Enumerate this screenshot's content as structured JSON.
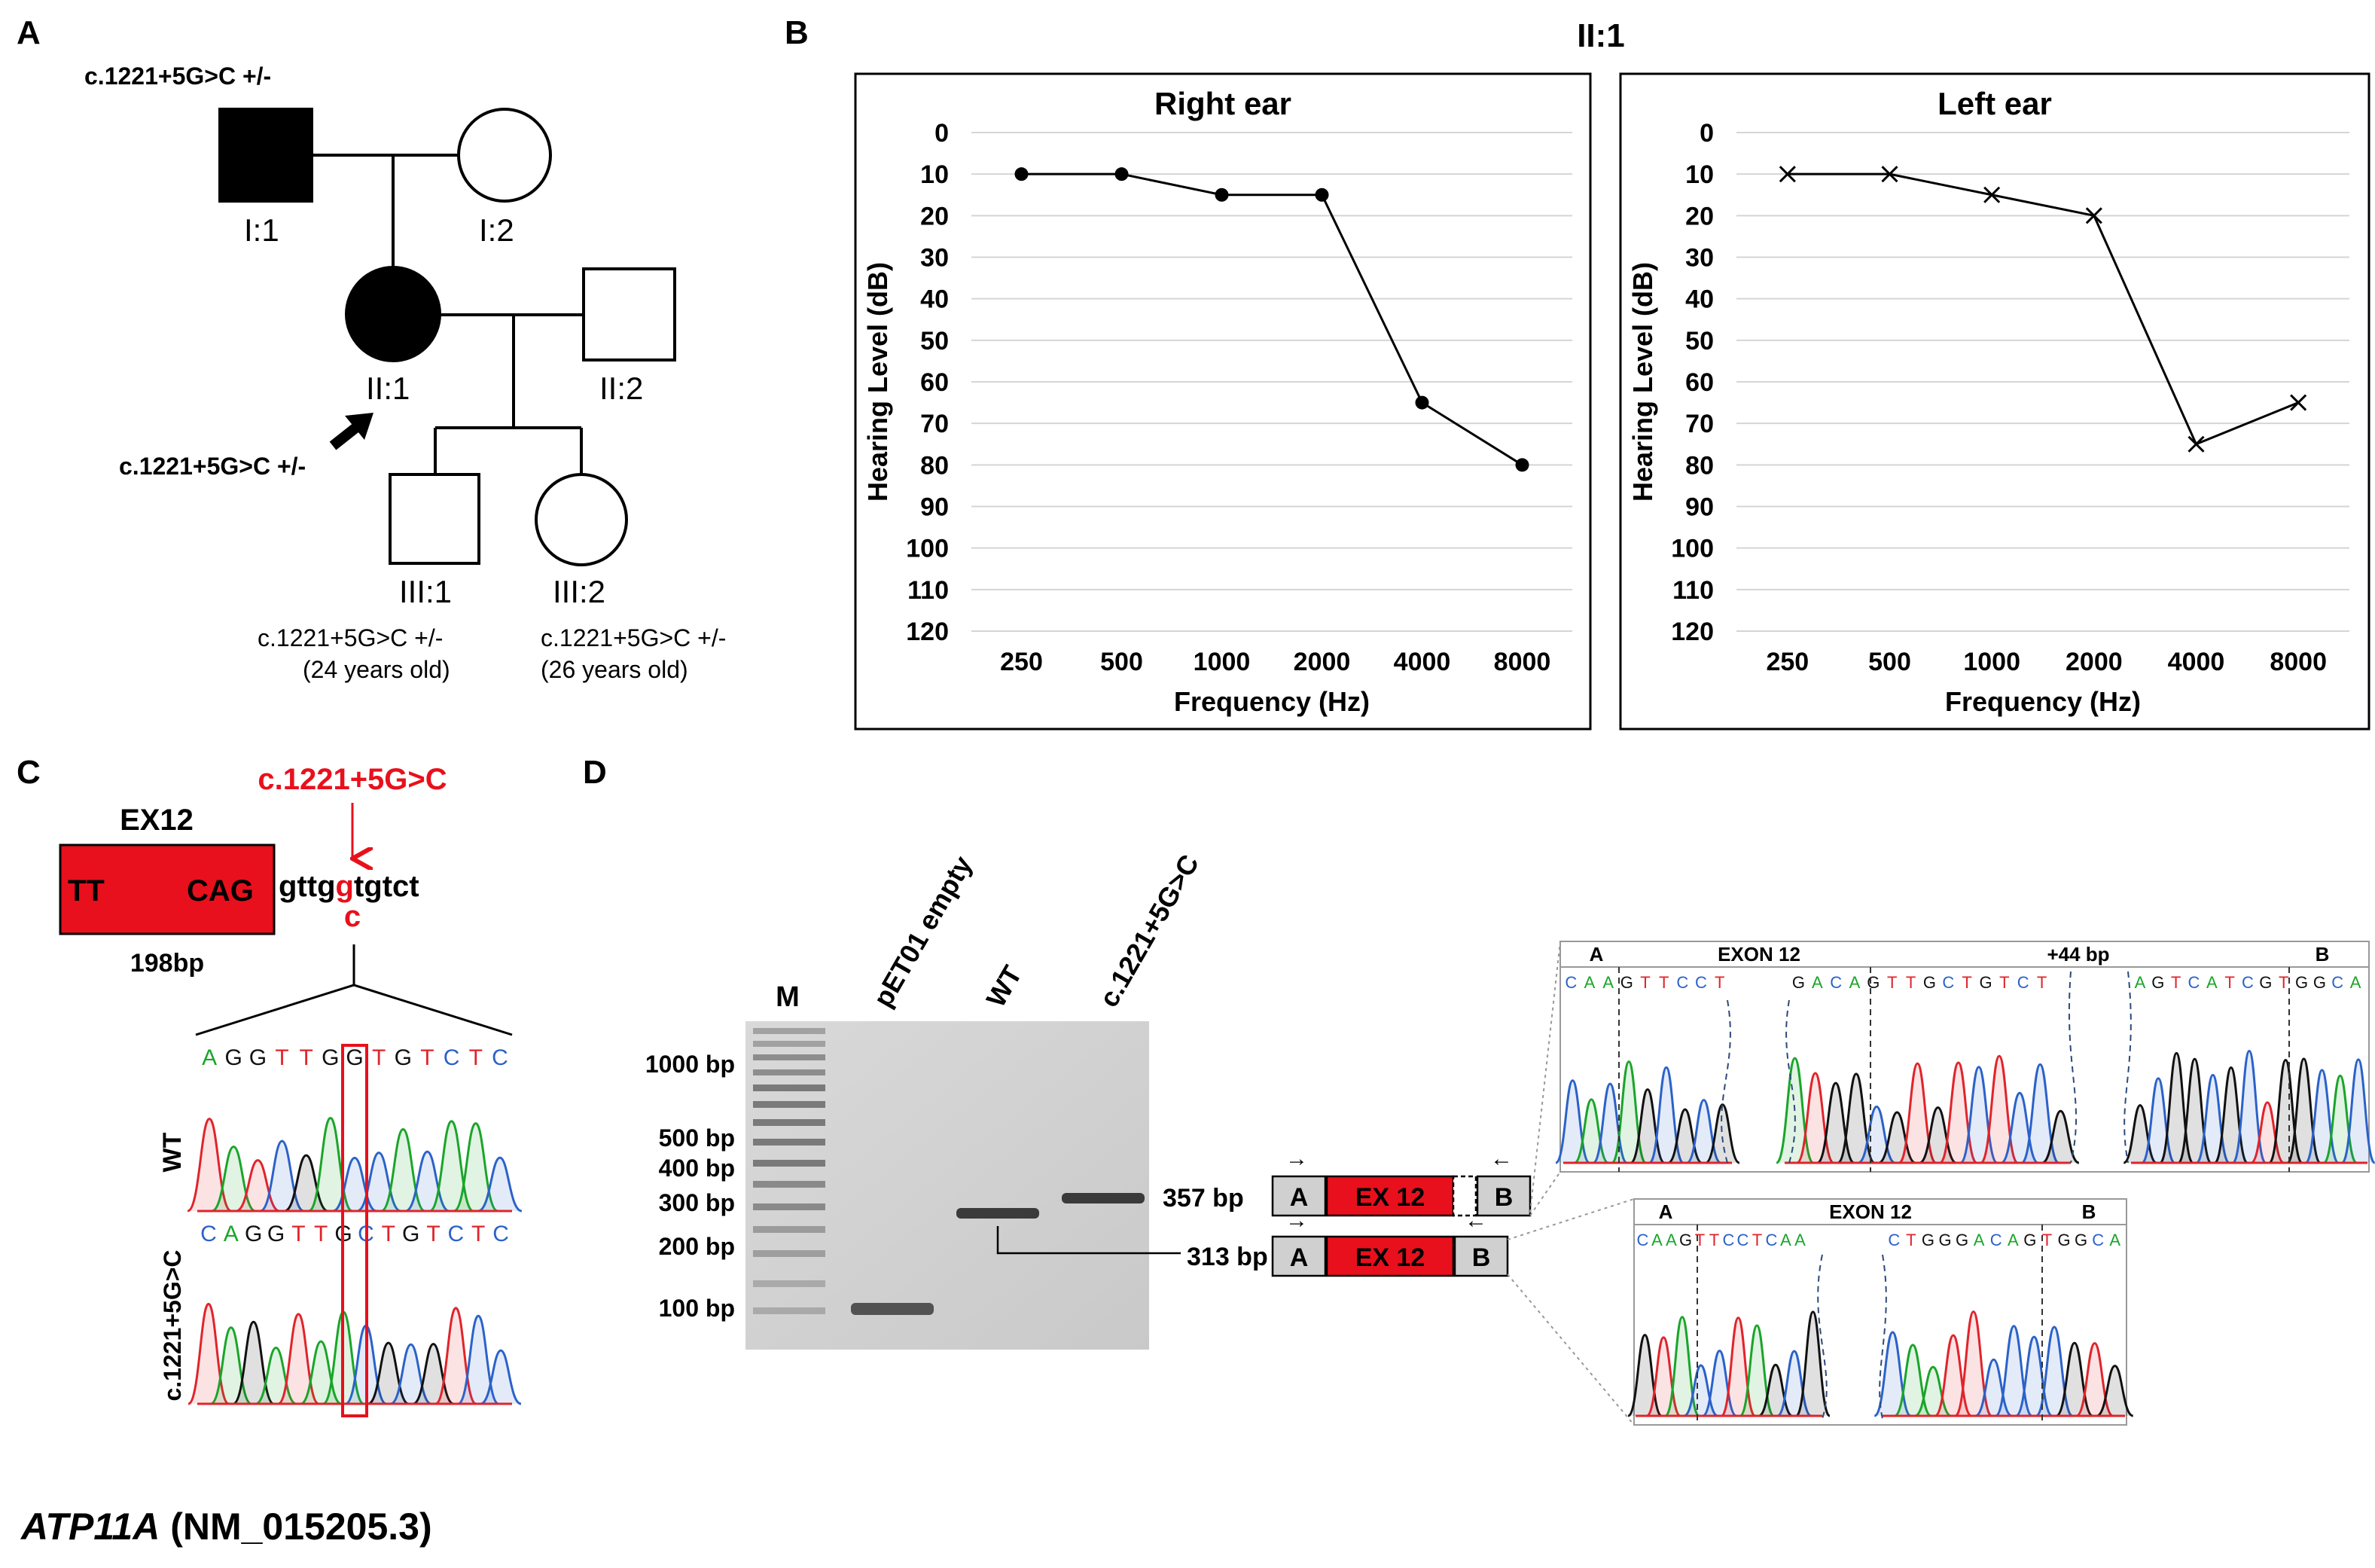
{
  "panel_labels": {
    "a": "A",
    "b": "B",
    "c": "C",
    "d": "D"
  },
  "pedigree": {
    "variant_top": "c.1221+5G>C +/-",
    "variant_proband": "c.1221+5G>C +/-",
    "variant_iii1": "c.1221+5G>C +/-",
    "variant_iii2": "c.1221+5G>C +/-",
    "age_iii1": "(24 years old)",
    "age_iii2": "(26 years old)",
    "ids": {
      "i1": "I:1",
      "i2": "I:2",
      "ii1": "II:1",
      "ii2": "II:2",
      "iii1": "III:1",
      "iii2": "III:2"
    }
  },
  "audiogram_title": "II:1",
  "chart_data": [
    {
      "type": "line",
      "title": "Right ear",
      "xlabel": "Frequency (Hz)",
      "ylabel": "Hearing Level (dB)",
      "categories": [
        "250",
        "500",
        "1000",
        "2000",
        "4000",
        "8000"
      ],
      "values": [
        10,
        10,
        15,
        15,
        65,
        80
      ],
      "marker": "circle",
      "ylim": [
        0,
        120
      ],
      "yticks": [
        "0",
        "10",
        "20",
        "30",
        "40",
        "50",
        "60",
        "70",
        "80",
        "90",
        "100",
        "110",
        "120"
      ],
      "y_inverted": true,
      "grid": true
    },
    {
      "type": "line",
      "title": "Left ear",
      "xlabel": "Frequency (Hz)",
      "ylabel": "Hearing Level (dB)",
      "categories": [
        "250",
        "500",
        "1000",
        "2000",
        "4000",
        "8000"
      ],
      "values": [
        10,
        10,
        15,
        20,
        75,
        65
      ],
      "marker": "x",
      "ylim": [
        0,
        120
      ],
      "yticks": [
        "0",
        "10",
        "20",
        "30",
        "40",
        "50",
        "60",
        "70",
        "80",
        "90",
        "100",
        "110",
        "120"
      ],
      "y_inverted": true,
      "grid": true
    }
  ],
  "panel_c": {
    "variant": "c.1221+5G>C",
    "exon": "EX12",
    "exon_left": "TT",
    "exon_right": "CAG",
    "intron_seq": "gttggtgtct",
    "intron_before": "gttg",
    "intron_mut": "g",
    "intron_after": "tgtct",
    "alt_base": "c",
    "exon_size": "198bp",
    "wt_label": "WT",
    "mut_label": "c.1221+5G>C",
    "wt_seq": [
      "A",
      "G",
      "G",
      "T",
      "T",
      "G",
      "G",
      "T",
      "G",
      "T",
      "C",
      "T",
      "C"
    ],
    "mut_seq": [
      "C",
      "A",
      "G",
      "G",
      "T",
      "T",
      "G",
      "C",
      "T",
      "G",
      "T",
      "C",
      "T",
      "C"
    ],
    "gene": "ATP11A",
    "transcript": "(NM_015205.3)"
  },
  "panel_d": {
    "marker_lane": "M",
    "lanes": [
      "pET01 empty",
      "WT",
      "c.1221+5G>C"
    ],
    "ladder": [
      "1000 bp",
      "500 bp",
      "400 bp",
      "300 bp",
      "200 bp",
      "100 bp"
    ],
    "band_357": "357 bp",
    "band_313": "313 bp",
    "exon_a": "A",
    "exon_b": "B",
    "exon_box": "EX 12",
    "trace_top": {
      "a": "A",
      "exon": "EXON 12",
      "plus": "+44 bp",
      "b": "B",
      "seq1": [
        "C",
        "A",
        "A",
        "G",
        "T",
        "T",
        "C",
        "C",
        "T"
      ],
      "seq2": [
        "G",
        "A",
        "C",
        "A",
        "G",
        "T",
        "T",
        "G",
        "C",
        "T",
        "G",
        "T",
        "C",
        "T"
      ],
      "seq3": [
        "A",
        "G",
        "T",
        "C",
        "A",
        "T",
        "C",
        "G",
        "T",
        "G",
        "G",
        "C",
        "A"
      ]
    },
    "trace_bottom": {
      "a": "A",
      "exon": "EXON 12",
      "b": "B",
      "seq1": [
        "C",
        "A",
        "A",
        "G",
        "T",
        "T",
        "C",
        "C",
        "T",
        "C",
        "A",
        "A"
      ],
      "seq2": [
        "C",
        "T",
        "G",
        "G",
        "G",
        "A",
        "C",
        "A",
        "G",
        "T",
        "G",
        "G",
        "C",
        "A"
      ]
    }
  },
  "colors": {
    "red": "#e8101c",
    "dna_a": "#1aa52a",
    "dna_c": "#2b62c9",
    "dna_g": "#111111",
    "dna_t": "#e0242b"
  }
}
